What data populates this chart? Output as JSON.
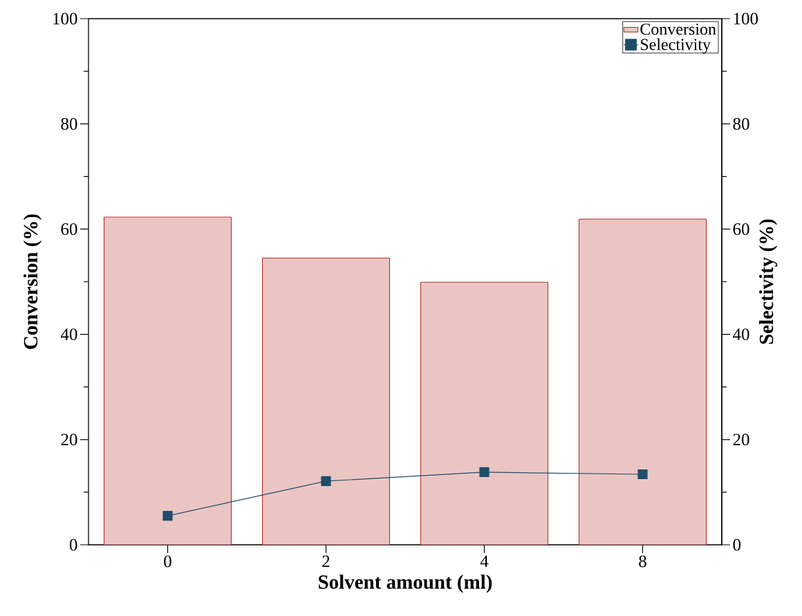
{
  "chart_data": {
    "type": "bar",
    "xlabel": "Solvent amount (ml)",
    "ylabel": "Conversion (%)",
    "y2label": "Selectivity (%)",
    "categories": [
      "0",
      "2",
      "4",
      "8"
    ],
    "series": [
      {
        "name": "Conversion",
        "color": "#ebc5c3",
        "values": [
          62.3,
          54.5,
          49.9,
          61.9
        ]
      },
      {
        "name": "Selectivity",
        "type": "line",
        "axis": "y2",
        "color": "#1f4e6b",
        "values": [
          5.5,
          12.1,
          13.8,
          13.4
        ]
      }
    ],
    "ylim": [
      0,
      100
    ],
    "yticks": [
      0,
      20,
      40,
      60,
      80,
      100
    ],
    "y2lim": [
      0,
      100
    ],
    "y2ticks": [
      0,
      20,
      40,
      60,
      80,
      100
    ],
    "legend": "top right",
    "marker": "square",
    "line_style": "solid"
  }
}
